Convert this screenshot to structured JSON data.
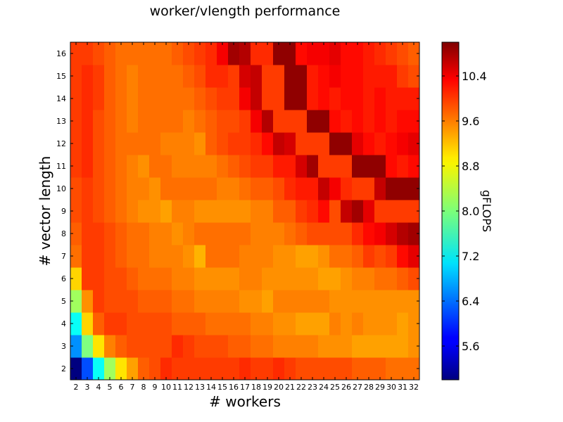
{
  "chart_data": {
    "type": "heatmap",
    "title": "worker/vlength performance",
    "xlabel": "# workers",
    "ylabel": "# vector length",
    "colorbar_label": "gFLOPS",
    "colormap": "jet",
    "vmin": 5.0,
    "vmax": 11.0,
    "x": [
      2,
      3,
      4,
      5,
      6,
      7,
      8,
      9,
      10,
      11,
      12,
      13,
      14,
      15,
      16,
      17,
      18,
      19,
      20,
      21,
      22,
      23,
      24,
      25,
      26,
      27,
      28,
      29,
      30,
      31,
      32
    ],
    "y": [
      2,
      3,
      4,
      5,
      6,
      7,
      8,
      9,
      10,
      11,
      12,
      13,
      14,
      15,
      16
    ],
    "colorbar_ticks": [
      "5.6",
      "6.4",
      "7.2",
      "8.0",
      "8.8",
      "9.6",
      "10.4"
    ],
    "colorbar_tick_values": [
      5.6,
      6.4,
      7.2,
      8.0,
      8.8,
      9.6,
      10.4
    ],
    "values": [
      [
        5.0,
        6.2,
        7.3,
        8.2,
        8.9,
        9.3,
        9.7,
        9.8,
        10.0,
        9.9,
        9.9,
        9.9,
        9.9,
        9.9,
        9.9,
        10.0,
        9.9,
        9.9,
        10.0,
        9.9,
        9.8,
        9.8,
        9.8,
        9.8,
        9.8,
        9.7,
        9.7,
        9.7,
        9.6,
        9.6,
        9.6
      ],
      [
        6.6,
        8.0,
        8.9,
        9.5,
        9.7,
        9.8,
        9.8,
        9.8,
        9.8,
        10.0,
        9.9,
        9.8,
        9.8,
        9.8,
        9.7,
        9.7,
        9.6,
        9.6,
        9.5,
        9.5,
        9.5,
        9.5,
        9.4,
        9.4,
        9.4,
        9.3,
        9.3,
        9.3,
        9.3,
        9.3,
        9.4
      ],
      [
        7.3,
        9.0,
        9.7,
        9.9,
        9.9,
        9.8,
        9.8,
        9.8,
        9.8,
        9.7,
        9.7,
        9.7,
        9.6,
        9.6,
        9.6,
        9.6,
        9.5,
        9.5,
        9.4,
        9.4,
        9.3,
        9.3,
        9.3,
        9.5,
        9.4,
        9.5,
        9.4,
        9.4,
        9.4,
        9.3,
        9.4
      ],
      [
        8.2,
        9.4,
        9.9,
        9.8,
        9.8,
        9.8,
        9.7,
        9.7,
        9.7,
        9.6,
        9.6,
        9.5,
        9.5,
        9.5,
        9.5,
        9.4,
        9.4,
        9.3,
        9.5,
        9.5,
        9.5,
        9.5,
        9.5,
        9.4,
        9.4,
        9.4,
        9.4,
        9.4,
        9.4,
        9.4,
        9.4
      ],
      [
        9.0,
        9.9,
        9.9,
        9.8,
        9.8,
        9.7,
        9.6,
        9.6,
        9.6,
        9.5,
        9.5,
        9.4,
        9.4,
        9.4,
        9.4,
        9.5,
        9.5,
        9.4,
        9.4,
        9.4,
        9.4,
        9.4,
        9.3,
        9.3,
        9.4,
        9.5,
        9.5,
        9.6,
        9.6,
        9.7,
        9.8
      ],
      [
        9.6,
        9.9,
        9.9,
        9.8,
        9.7,
        9.6,
        9.6,
        9.5,
        9.5,
        9.5,
        9.4,
        9.2,
        9.6,
        9.6,
        9.6,
        9.5,
        9.5,
        9.5,
        9.4,
        9.4,
        9.3,
        9.3,
        9.4,
        9.6,
        9.6,
        9.7,
        9.9,
        9.8,
        9.9,
        10.2,
        10.4
      ],
      [
        9.7,
        9.9,
        9.9,
        9.8,
        9.7,
        9.6,
        9.6,
        9.5,
        9.5,
        9.4,
        9.5,
        9.6,
        9.6,
        9.6,
        9.6,
        9.6,
        9.5,
        9.5,
        9.5,
        9.6,
        9.7,
        9.8,
        9.8,
        9.8,
        9.8,
        10.0,
        10.2,
        10.3,
        10.5,
        10.7,
        10.8
      ],
      [
        9.8,
        9.9,
        9.8,
        9.7,
        9.6,
        9.5,
        9.4,
        9.4,
        9.3,
        9.5,
        9.5,
        9.4,
        9.4,
        9.4,
        9.4,
        9.4,
        9.5,
        9.5,
        9.7,
        9.7,
        9.9,
        10.0,
        10.2,
        9.8,
        10.6,
        10.8,
        10.4,
        9.9,
        9.9,
        9.9,
        9.9
      ],
      [
        9.8,
        9.9,
        9.8,
        9.7,
        9.6,
        9.5,
        9.5,
        9.4,
        9.6,
        9.6,
        9.6,
        9.6,
        9.6,
        9.5,
        9.5,
        9.6,
        9.7,
        9.7,
        9.8,
        10.0,
        10.1,
        10.1,
        10.6,
        10.3,
        10.0,
        9.9,
        9.9,
        10.6,
        10.9,
        10.9,
        10.9
      ],
      [
        9.9,
        10.0,
        9.8,
        9.7,
        9.6,
        9.5,
        9.4,
        9.6,
        9.6,
        9.5,
        9.5,
        9.5,
        9.5,
        9.6,
        9.7,
        9.8,
        9.9,
        9.9,
        10.1,
        10.1,
        10.5,
        10.8,
        9.9,
        9.9,
        9.9,
        10.9,
        10.9,
        10.9,
        10.2,
        10.1,
        10.2
      ],
      [
        9.9,
        10.0,
        9.8,
        9.7,
        9.6,
        9.6,
        9.6,
        9.6,
        9.5,
        9.5,
        9.5,
        9.4,
        9.7,
        9.8,
        9.9,
        9.9,
        10.0,
        10.2,
        10.6,
        10.5,
        9.9,
        9.9,
        9.9,
        10.9,
        10.9,
        10.4,
        10.2,
        10.1,
        10.2,
        10.3,
        10.4
      ],
      [
        9.9,
        10.0,
        9.8,
        9.7,
        9.6,
        9.5,
        9.6,
        9.6,
        9.6,
        9.6,
        9.5,
        9.6,
        9.7,
        9.8,
        9.8,
        9.9,
        10.3,
        10.7,
        9.9,
        9.9,
        9.9,
        10.9,
        10.9,
        10.2,
        10.1,
        10.2,
        10.1,
        10.2,
        10.1,
        10.2,
        10.2
      ],
      [
        9.9,
        10.0,
        9.9,
        9.7,
        9.6,
        9.5,
        9.6,
        9.6,
        9.6,
        9.6,
        9.6,
        9.7,
        9.8,
        9.9,
        9.9,
        10.3,
        10.6,
        9.9,
        9.9,
        10.9,
        10.9,
        10.1,
        10.2,
        10.1,
        10.2,
        10.2,
        10.1,
        10.2,
        10.1,
        10.1,
        10.1
      ],
      [
        9.9,
        10.0,
        9.9,
        9.7,
        9.6,
        9.5,
        9.6,
        9.6,
        9.6,
        9.6,
        9.7,
        9.8,
        10.0,
        10.0,
        9.9,
        10.5,
        10.6,
        9.9,
        9.9,
        10.9,
        10.9,
        10.1,
        10.2,
        10.3,
        10.2,
        10.2,
        10.1,
        10.1,
        10.1,
        9.9,
        9.8
      ],
      [
        9.9,
        9.9,
        9.8,
        9.7,
        9.6,
        9.6,
        9.6,
        9.6,
        9.6,
        9.7,
        9.8,
        9.9,
        10.0,
        10.3,
        10.8,
        10.7,
        10.0,
        10.0,
        10.9,
        10.9,
        10.2,
        10.3,
        10.3,
        10.4,
        10.2,
        10.2,
        10.1,
        10.0,
        9.9,
        9.8,
        9.7
      ]
    ]
  }
}
